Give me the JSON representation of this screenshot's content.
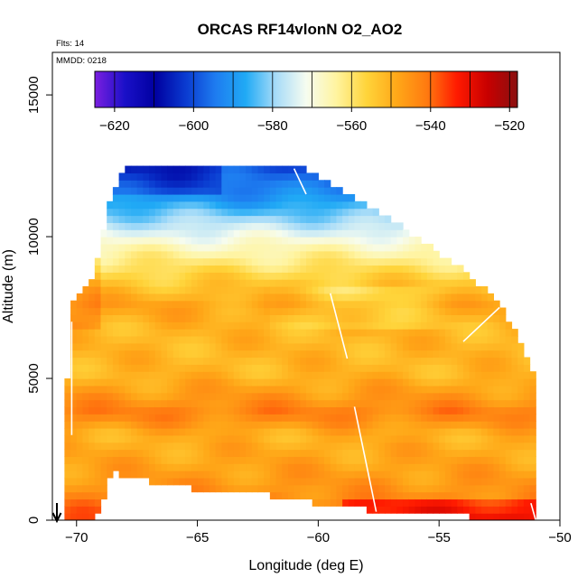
{
  "chart_data": {
    "type": "heatmap",
    "title": "ORCAS RF14vlonN O2_AO2",
    "annotations": {
      "flights": "Flts: 14",
      "date": "MMDD: 0218"
    },
    "xlabel": "Longitude (deg E)",
    "ylabel": "Altitude (m)",
    "xlim": [
      -71,
      -50
    ],
    "ylim": [
      0,
      16500
    ],
    "x_ticks": [
      -70,
      -65,
      -60,
      -55,
      -50
    ],
    "y_ticks": [
      0,
      5000,
      10000,
      15000
    ],
    "colorbar": {
      "range": [
        -625,
        -518
      ],
      "ticks": [
        -620,
        -600,
        -580,
        -560,
        -540,
        -520
      ],
      "stops": [
        "#7b1fe0",
        "#1a10c8",
        "#0000a0",
        "#0a3ad0",
        "#1e7cf0",
        "#20aaf5",
        "#a8dcf8",
        "#f6fcf0",
        "#fff4a0",
        "#ffd43a",
        "#ffa818",
        "#ff7a10",
        "#ff1a00",
        "#c80000",
        "#8a1010"
      ]
    },
    "envelope": [
      [
        -70.5,
        0,
        3000
      ],
      [
        -70.2,
        0,
        7500
      ],
      [
        -69.2,
        0,
        8700
      ],
      [
        -68.5,
        1800,
        11500
      ],
      [
        -68.0,
        1500,
        12500
      ],
      [
        -65.0,
        1100,
        12500
      ],
      [
        -61.0,
        800,
        12500
      ],
      [
        -60.0,
        600,
        12000
      ],
      [
        -57.0,
        250,
        10500
      ],
      [
        -54.0,
        150,
        8700
      ],
      [
        -52.5,
        50,
        7600
      ],
      [
        -51.0,
        0,
        5000
      ]
    ],
    "profile": [
      [
        12500,
        -600
      ],
      [
        11500,
        -592
      ],
      [
        10500,
        -578
      ],
      [
        9600,
        -566
      ],
      [
        8600,
        -556
      ],
      [
        7600,
        -548
      ],
      [
        6800,
        -551
      ],
      [
        5200,
        -551
      ],
      [
        4200,
        -545
      ],
      [
        3800,
        -542
      ],
      [
        3000,
        -550
      ],
      [
        2000,
        -548
      ],
      [
        1000,
        -545
      ],
      [
        0,
        -538
      ]
    ],
    "flight_track": [
      [
        -70.2,
        7000
      ],
      [
        -70.2,
        3000
      ],
      [
        -61.0,
        12400
      ],
      [
        -60.5,
        11500
      ],
      [
        -59.5,
        8000
      ],
      [
        -58.8,
        5700
      ],
      [
        -58.5,
        4000
      ],
      [
        -57.6,
        300
      ],
      [
        -57.5,
        0
      ],
      [
        -56.8,
        200
      ],
      [
        -54.0,
        6300
      ],
      [
        -52.5,
        7500
      ],
      [
        -51.2,
        600
      ],
      [
        -51.0,
        0
      ]
    ]
  }
}
